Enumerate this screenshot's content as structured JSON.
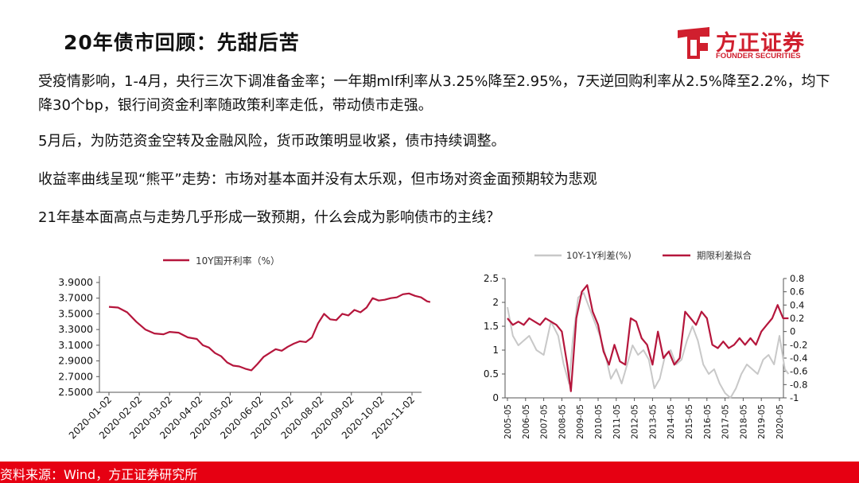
{
  "title": "20年债市回顾：先甜后苦",
  "logo": {
    "cn": "方正证券",
    "en": "FOUNDER SECURITIES"
  },
  "paragraphs": [
    "受疫情影响，1-4月，央行三次下调准备金率；一年期mlf利率从3.25%降至2.95%，7天逆回购利率从2.5%降至2.2%，均下降30个bp，银行间资金利率随政策利率走低，带动债市走强。",
    "5月后，为防范资金空转及金融风险，货币政策明显收紧，债市持续调整。",
    "收益率曲线呈现“熊平”走势：市场对基本面并没有太乐观，但市场对资金面预期较为悲观",
    "21年基本面高点与走势几乎形成一致预期，什么会成为影响债市的主线？"
  ],
  "footer": "资料来源：Wind，方正证券研究所",
  "colors": {
    "brand_red": "#d01f2e",
    "series_red": "#b5163c",
    "series_gray": "#c8c8c8",
    "footer_red": "#e60012"
  },
  "chart_data": [
    {
      "type": "line",
      "legend": "10Y国开利率（%）",
      "legend_position": "top-center",
      "grid": false,
      "x_ticks": [
        "2020-01-02",
        "2020-02-02",
        "2020-03-02",
        "2020-04-02",
        "2020-05-02",
        "2020-06-02",
        "2020-07-02",
        "2020-08-02",
        "2020-09-02",
        "2020-10-02",
        "2020-11-02"
      ],
      "y_ticks": [
        "3.9000",
        "3.7000",
        "3.5000",
        "3.3000",
        "3.1000",
        "2.9000",
        "2.7000",
        "2.5000"
      ],
      "ylim": [
        2.5,
        3.9
      ],
      "series": [
        {
          "name": "10Y国开利率（%）",
          "x": [
            0,
            0.3,
            0.6,
            0.9,
            1.2,
            1.5,
            1.8,
            2.0,
            2.3,
            2.6,
            2.9,
            3.1,
            3.3,
            3.5,
            3.7,
            3.9,
            4.1,
            4.3,
            4.5,
            4.7,
            4.9,
            5.1,
            5.3,
            5.5,
            5.7,
            5.9,
            6.1,
            6.3,
            6.5,
            6.7,
            6.9,
            7.1,
            7.3,
            7.5,
            7.7,
            7.9,
            8.1,
            8.3,
            8.5,
            8.7,
            8.9,
            9.1,
            9.3,
            9.5,
            9.7,
            9.9,
            10.1,
            10.3,
            10.5,
            10.6
          ],
          "values": [
            3.59,
            3.58,
            3.52,
            3.4,
            3.3,
            3.25,
            3.24,
            3.27,
            3.26,
            3.2,
            3.18,
            3.1,
            3.07,
            3.0,
            2.96,
            2.88,
            2.84,
            2.83,
            2.8,
            2.78,
            2.86,
            2.95,
            3.0,
            3.05,
            3.03,
            3.08,
            3.12,
            3.15,
            3.14,
            3.2,
            3.38,
            3.5,
            3.43,
            3.42,
            3.5,
            3.48,
            3.55,
            3.52,
            3.58,
            3.7,
            3.67,
            3.68,
            3.7,
            3.71,
            3.75,
            3.76,
            3.73,
            3.71,
            3.66,
            3.65
          ]
        }
      ]
    },
    {
      "type": "line",
      "legend_position": "top-center",
      "grid": false,
      "x_ticks": [
        "2005-05",
        "2006-05",
        "2007-05",
        "2008-05",
        "2009-05",
        "2010-05",
        "2011-05",
        "2012-05",
        "2013-05",
        "2014-05",
        "2015-05",
        "2016-05",
        "2017-05",
        "2018-05",
        "2019-05",
        "2020-05"
      ],
      "y_left_ticks": [
        "2.5",
        "2",
        "1.5",
        "1",
        "0.5",
        "0"
      ],
      "y_right_ticks": [
        "0.8",
        "0.6",
        "0.4",
        "0.2",
        "0",
        "-0.2",
        "-0.4",
        "-0.6",
        "-0.8",
        "-1"
      ],
      "ylim_left": [
        0,
        2.5
      ],
      "ylim_right": [
        -1,
        0.8
      ],
      "series": [
        {
          "name": "10Y-1Y利差(%)",
          "axis": "left",
          "x": [
            2005.4,
            2005.7,
            2006.0,
            2006.3,
            2006.6,
            2007.0,
            2007.4,
            2007.8,
            2008.2,
            2008.5,
            2008.8,
            2009.0,
            2009.3,
            2009.6,
            2009.9,
            2010.2,
            2010.5,
            2010.8,
            2011.1,
            2011.4,
            2011.7,
            2012.0,
            2012.3,
            2012.6,
            2012.9,
            2013.2,
            2013.5,
            2013.8,
            2014.1,
            2014.4,
            2014.7,
            2015.0,
            2015.3,
            2015.6,
            2015.9,
            2016.2,
            2016.5,
            2016.8,
            2017.1,
            2017.4,
            2017.7,
            2018.0,
            2018.3,
            2018.6,
            2018.9,
            2019.2,
            2019.5,
            2019.8,
            2020.1,
            2020.4,
            2020.7,
            2020.9
          ],
          "values": [
            1.9,
            1.3,
            1.1,
            1.2,
            1.3,
            1.0,
            0.9,
            1.6,
            1.3,
            0.7,
            0.3,
            1.2,
            2.1,
            2.2,
            1.9,
            1.6,
            1.3,
            0.9,
            0.4,
            0.6,
            0.3,
            0.7,
            1.1,
            0.9,
            1.0,
            0.8,
            0.2,
            0.4,
            0.9,
            1.0,
            0.7,
            0.8,
            1.2,
            1.5,
            1.2,
            0.7,
            0.5,
            0.6,
            0.3,
            0.1,
            0.0,
            0.2,
            0.5,
            0.7,
            0.6,
            0.5,
            0.8,
            0.9,
            0.7,
            1.3,
            0.6,
            0.5
          ]
        },
        {
          "name": "期限利差拟合",
          "axis": "right",
          "x": [
            2005.4,
            2005.7,
            2006.0,
            2006.3,
            2006.6,
            2006.9,
            2007.2,
            2007.5,
            2007.8,
            2008.1,
            2008.4,
            2008.7,
            2008.9,
            2009.2,
            2009.5,
            2009.8,
            2010.1,
            2010.4,
            2010.7,
            2011.0,
            2011.3,
            2011.6,
            2011.9,
            2012.2,
            2012.5,
            2012.8,
            2013.1,
            2013.4,
            2013.7,
            2014.0,
            2014.3,
            2014.6,
            2014.9,
            2015.2,
            2015.5,
            2015.8,
            2016.1,
            2016.4,
            2016.7,
            2017.0,
            2017.3,
            2017.6,
            2017.9,
            2018.2,
            2018.5,
            2018.8,
            2019.1,
            2019.4,
            2019.7,
            2020.0,
            2020.3,
            2020.6,
            2020.9
          ],
          "values": [
            0.2,
            0.1,
            0.15,
            0.1,
            0.2,
            0.15,
            0.1,
            0.2,
            0.15,
            0.1,
            0.0,
            -0.5,
            -0.9,
            0.2,
            0.6,
            0.7,
            0.3,
            0.1,
            -0.3,
            -0.5,
            -0.2,
            -0.45,
            -0.5,
            0.2,
            0.15,
            -0.1,
            -0.2,
            -0.5,
            0.0,
            -0.4,
            -0.3,
            -0.5,
            -0.4,
            0.3,
            0.2,
            0.1,
            0.3,
            0.2,
            -0.2,
            -0.25,
            -0.15,
            -0.25,
            -0.2,
            -0.1,
            -0.2,
            -0.1,
            -0.2,
            0.0,
            0.1,
            0.2,
            0.4,
            0.2,
            0.2
          ]
        }
      ]
    }
  ]
}
